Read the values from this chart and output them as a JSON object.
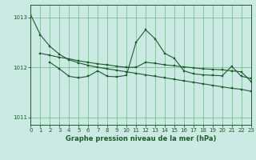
{
  "bg_color": "#cceae4",
  "grid_color": "#66bb77",
  "line_color": "#1a5c2a",
  "title": "Graphe pression niveau de la mer (hPa)",
  "xlim": [
    0,
    23
  ],
  "ylim": [
    1010.85,
    1013.25
  ],
  "yticks": [
    1011,
    1012,
    1013
  ],
  "xticks": [
    0,
    1,
    2,
    3,
    4,
    5,
    6,
    7,
    8,
    9,
    10,
    11,
    12,
    13,
    14,
    15,
    16,
    17,
    18,
    19,
    20,
    21,
    22,
    23
  ],
  "line1_x": [
    0,
    1,
    2,
    3,
    4,
    5,
    6,
    7,
    8,
    9,
    10,
    11,
    12,
    13,
    14,
    15,
    16,
    17,
    18,
    19,
    20,
    21,
    22,
    23
  ],
  "line1_y": [
    1013.05,
    1012.65,
    1012.42,
    1012.26,
    1012.15,
    1012.09,
    1012.04,
    1012.0,
    1011.97,
    1011.94,
    1011.91,
    1011.88,
    1011.85,
    1011.82,
    1011.79,
    1011.76,
    1011.73,
    1011.7,
    1011.67,
    1011.64,
    1011.61,
    1011.58,
    1011.56,
    1011.52
  ],
  "line2_x": [
    1,
    2,
    3,
    4,
    5,
    6,
    7,
    8,
    9,
    10,
    11,
    12,
    13,
    14,
    15,
    16,
    17,
    18,
    19,
    20,
    21,
    22,
    23
  ],
  "line2_y": [
    1012.28,
    1012.24,
    1012.2,
    1012.17,
    1012.13,
    1012.1,
    1012.07,
    1012.05,
    1012.02,
    1012.0,
    1012.0,
    1012.1,
    1012.08,
    1012.05,
    1012.03,
    1012.01,
    1011.99,
    1011.97,
    1011.96,
    1011.95,
    1011.93,
    1011.91,
    1011.72
  ],
  "line3_x": [
    2,
    3,
    4,
    5,
    6,
    7,
    8,
    9,
    10,
    11,
    12,
    13,
    14,
    15,
    16,
    17,
    18,
    19,
    20,
    21,
    22,
    23
  ],
  "line3_y": [
    1012.1,
    1011.97,
    1011.82,
    1011.79,
    1011.82,
    1011.93,
    1011.82,
    1011.81,
    1011.84,
    1012.5,
    1012.75,
    1012.57,
    1012.28,
    1012.18,
    1011.93,
    1011.87,
    1011.85,
    1011.84,
    1011.83,
    1012.02,
    1011.82,
    1011.78
  ]
}
